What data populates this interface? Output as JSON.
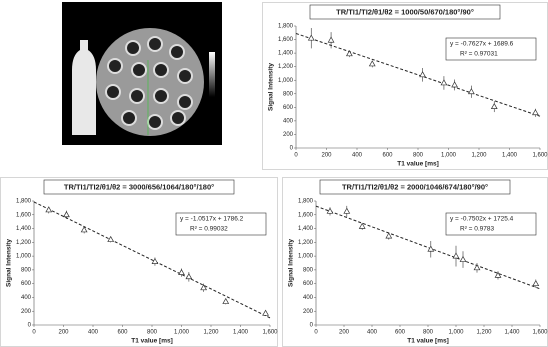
{
  "chart_data": [
    {
      "type": "scatter",
      "title": "TR/TI1/TI2/θ1/θ2 = 1000/50/670/180°/90°",
      "x_label": "T1 value [ms]",
      "y_label": "Signal Intensity",
      "equation": "y = -0.7627x + 1689.6",
      "r_squared": "R² = 0.97031",
      "trendline": {
        "slope": -0.7627,
        "intercept": 1689.6
      },
      "x": [
        100,
        230,
        350,
        500,
        830,
        970,
        1040,
        1150,
        1300,
        1570
      ],
      "values": [
        1620,
        1590,
        1390,
        1240,
        1080,
        960,
        930,
        830,
        610,
        520
      ],
      "errors": [
        150,
        120,
        50,
        50,
        100,
        100,
        80,
        90,
        80,
        60
      ],
      "color": "#333333",
      "xlim": [
        0,
        1600
      ],
      "xticks": [
        0,
        200,
        400,
        600,
        800,
        {
          "value": 1000,
          "label": "1,000"
        },
        {
          "value": 1200,
          "label": "1,200"
        },
        {
          "value": 1400,
          "label": "1,400"
        },
        {
          "value": 1600,
          "label": "1,600"
        }
      ],
      "ylim": [
        0,
        1800
      ],
      "yticks": [
        0,
        200,
        400,
        600,
        800,
        {
          "value": 1000,
          "label": "1,000"
        },
        {
          "value": 1200,
          "label": "1,200"
        },
        {
          "value": 1400,
          "label": "1,400"
        },
        {
          "value": 1600,
          "label": "1,600"
        },
        {
          "value": 1800,
          "label": "1,800"
        }
      ]
    },
    {
      "type": "scatter",
      "title": "TR/TI1/TI2/θ1/θ2 = 3000/656/1064/180°/180°",
      "x_label": "T1 value [ms]",
      "y_label": "Signal Intensity",
      "equation": "y = -1.0517x + 1786.2",
      "r_squared": "R² = 0.99032",
      "trendline": {
        "slope": -1.0517,
        "intercept": 1786.2
      },
      "x": [
        100,
        220,
        340,
        520,
        820,
        1000,
        1050,
        1150,
        1300,
        1570
      ],
      "values": [
        1670,
        1600,
        1380,
        1240,
        920,
        760,
        700,
        540,
        340,
        170
      ],
      "errors": [
        50,
        60,
        50,
        40,
        60,
        60,
        70,
        60,
        40,
        40
      ],
      "color": "#333333",
      "xlim": [
        0,
        1600
      ],
      "xticks": [
        0,
        200,
        400,
        600,
        800,
        {
          "value": 1000,
          "label": "1,000"
        },
        {
          "value": 1200,
          "label": "1,200"
        },
        {
          "value": 1400,
          "label": "1,400"
        },
        {
          "value": 1600,
          "label": "1,600"
        }
      ],
      "ylim": [
        0,
        1800
      ],
      "yticks": [
        0,
        200,
        400,
        600,
        800,
        {
          "value": 1000,
          "label": "1,000"
        },
        {
          "value": 1200,
          "label": "1,200"
        },
        {
          "value": 1400,
          "label": "1,400"
        },
        {
          "value": 1600,
          "label": "1,600"
        },
        {
          "value": 1800,
          "label": "1,800"
        }
      ]
    },
    {
      "type": "scatter",
      "title": "TR/TI1/TI2/θ1/θ2 = 2000/1046/674/180°/90°",
      "x_label": "T1 value [ms]",
      "y_label": "Signal Intensity",
      "equation": "y = -0.7502x + 1725.4",
      "r_squared": "R² = 0.9783",
      "trendline": {
        "slope": -0.7502,
        "intercept": 1725.4
      },
      "x": [
        100,
        220,
        330,
        520,
        820,
        1000,
        1050,
        1150,
        1300,
        1570
      ],
      "values": [
        1650,
        1650,
        1430,
        1290,
        1100,
        1000,
        950,
        830,
        720,
        600
      ],
      "errors": [
        60,
        80,
        50,
        50,
        120,
        150,
        120,
        70,
        60,
        60
      ],
      "color": "#333333",
      "xlim": [
        0,
        1600
      ],
      "xticks": [
        0,
        200,
        400,
        600,
        800,
        {
          "value": 1000,
          "label": "1,000"
        },
        {
          "value": 1200,
          "label": "1,200"
        },
        {
          "value": 1400,
          "label": "1,400"
        },
        {
          "value": 1600,
          "label": "1,600"
        }
      ],
      "ylim": [
        0,
        1800
      ],
      "yticks": [
        0,
        200,
        400,
        600,
        800,
        {
          "value": 1000,
          "label": "1,000"
        },
        {
          "value": 1200,
          "label": "1,200"
        },
        {
          "value": 1400,
          "label": "1,400"
        },
        {
          "value": 1600,
          "label": "1,600"
        },
        {
          "value": 1800,
          "label": "1,800"
        }
      ]
    }
  ]
}
